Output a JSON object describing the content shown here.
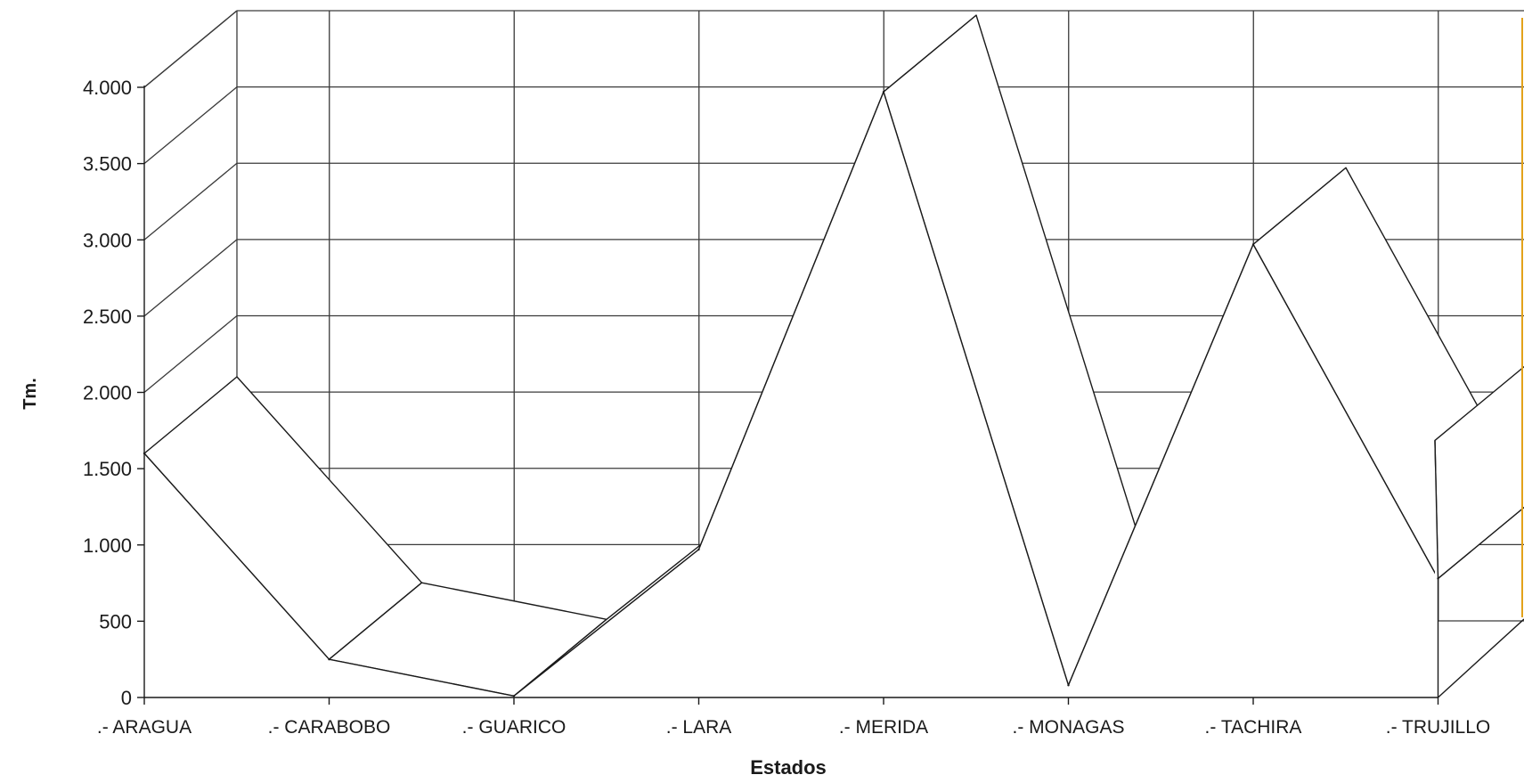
{
  "chart_data": {
    "type": "line",
    "style": "3d-ribbon",
    "categories": [
      ".- ARAGUA",
      ".- CARABOBO",
      ".- GUARICO",
      ".- LARA",
      ".- MERIDA",
      ".- MONAGAS",
      ".- TACHIRA",
      ".- TRUJILLO"
    ],
    "values": [
      1600,
      250,
      10,
      970,
      3970,
      80,
      2970,
      780
    ],
    "ylabel": "Tm.",
    "xlabel": "Estados",
    "ylim": [
      0,
      4000
    ],
    "yticks": [
      0,
      500,
      1000,
      1500,
      2000,
      2500,
      3000,
      3500,
      4000
    ],
    "ytick_labels": [
      "0",
      "500",
      "1.000",
      "1.500",
      "2.000",
      "2.500",
      "3.000",
      "3.500",
      "4.000"
    ],
    "grid": true,
    "colors": {
      "line": "#1a1a1a",
      "grid": "#3a3a3a",
      "ribbon": "#ffffff",
      "accent": "#e3a21a"
    }
  }
}
